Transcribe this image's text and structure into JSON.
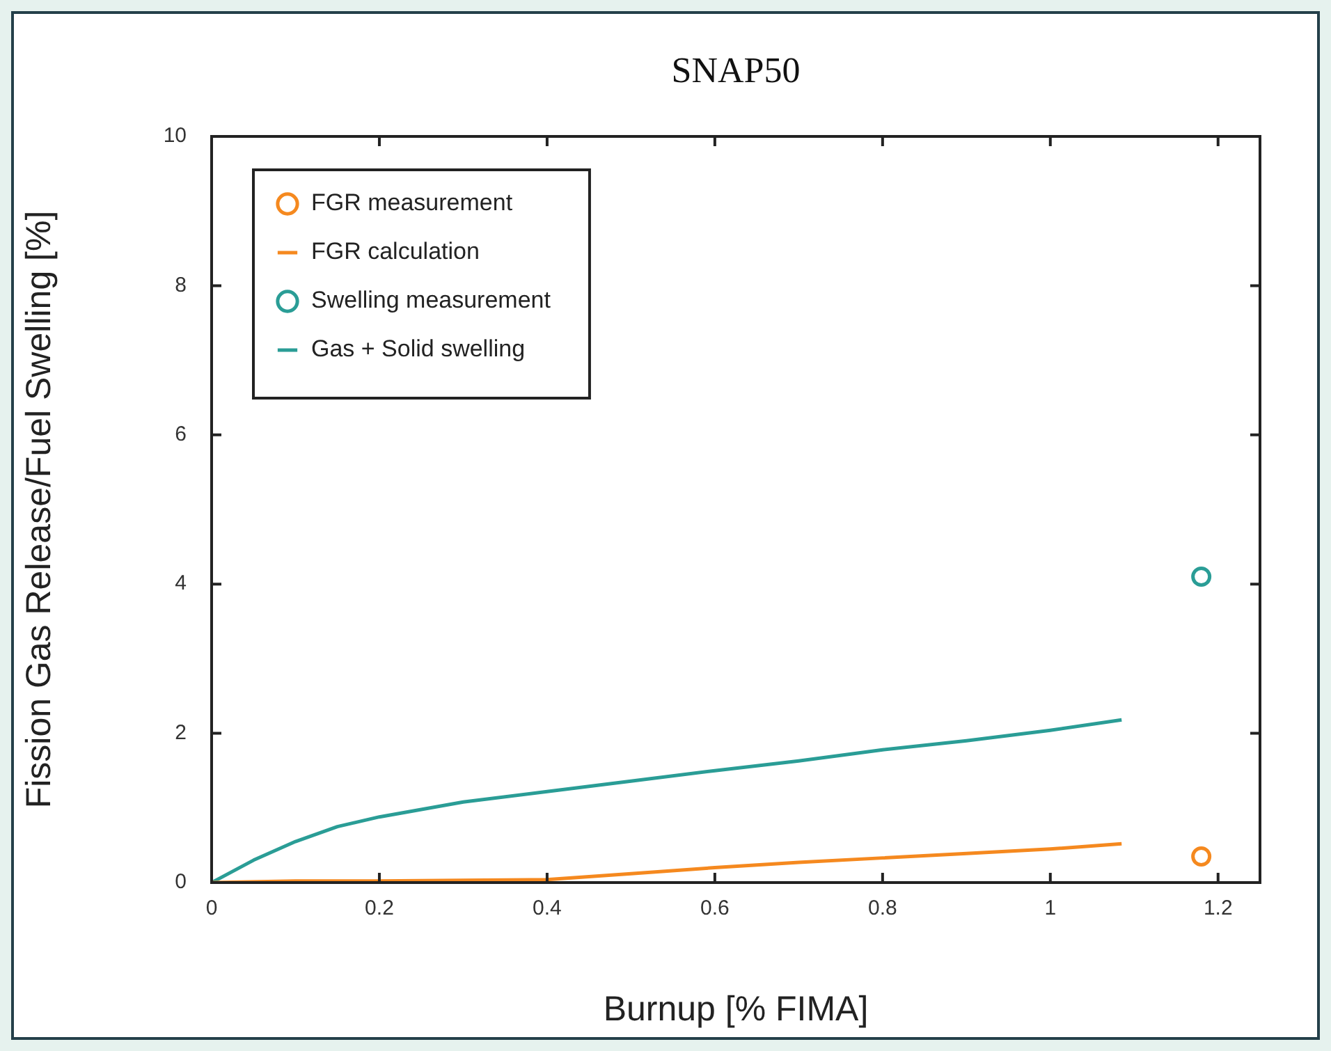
{
  "chart_data": {
    "type": "line",
    "title": "SNAP50",
    "xlabel": "Burnup [% FIMA]",
    "ylabel": "Fission Gas Release/Fuel Swelling [%]",
    "xlim": [
      0,
      1.25
    ],
    "xticks": [
      0,
      0.2,
      0.4,
      0.6,
      0.8,
      1,
      1.2
    ],
    "ylim": [
      0,
      10
    ],
    "yticks": [
      0,
      2,
      4,
      6,
      8,
      10
    ],
    "grid": false,
    "legend": "top left",
    "series": [
      {
        "name": "FGR measurement",
        "type": "scatter",
        "marker": "circle",
        "color": "#f5891f",
        "x": [
          1.18
        ],
        "values": [
          0.35
        ]
      },
      {
        "name": "FGR calculation",
        "type": "line",
        "marker": "none",
        "color": "#f5891f",
        "x": [
          0,
          0.1,
          0.2,
          0.3,
          0.4,
          0.5,
          0.6,
          0.7,
          0.8,
          0.9,
          1.0,
          1.085
        ],
        "values": [
          0,
          0.02,
          0.02,
          0.03,
          0.04,
          0.12,
          0.2,
          0.27,
          0.33,
          0.39,
          0.45,
          0.52
        ]
      },
      {
        "name": "Swelling measurement",
        "type": "scatter",
        "marker": "circle",
        "color": "#2a9d96",
        "x": [
          1.18
        ],
        "values": [
          4.1
        ]
      },
      {
        "name": "Gas + Solid swelling",
        "type": "line",
        "marker": "none",
        "color": "#2a9d96",
        "x": [
          0,
          0.05,
          0.1,
          0.15,
          0.2,
          0.3,
          0.4,
          0.5,
          0.6,
          0.7,
          0.8,
          0.9,
          1.0,
          1.085
        ],
        "values": [
          0,
          0.3,
          0.55,
          0.75,
          0.88,
          1.08,
          1.22,
          1.36,
          1.5,
          1.63,
          1.78,
          1.9,
          2.04,
          2.18
        ]
      }
    ]
  }
}
